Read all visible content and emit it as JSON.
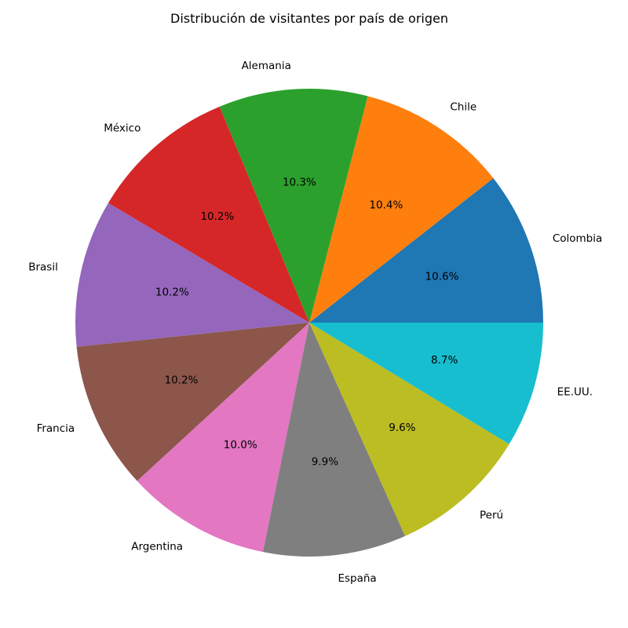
{
  "chart_data": {
    "type": "pie",
    "title": "Distribución de visitantes por país de origen",
    "start_angle_deg": 0,
    "direction": "counterclockwise",
    "categories": [
      "Colombia",
      "Chile",
      "Alemania",
      "México",
      "Brasil",
      "Francia",
      "Argentina",
      "España",
      "Perú",
      "EE.UU."
    ],
    "values": [
      10.6,
      10.4,
      10.3,
      10.2,
      10.2,
      10.2,
      10.0,
      9.9,
      9.6,
      8.7
    ],
    "value_labels": [
      "10.6%",
      "10.4%",
      "10.3%",
      "10.2%",
      "10.2%",
      "10.2%",
      "10.0%",
      "9.9%",
      "9.6%",
      "8.7%"
    ],
    "colors": [
      "#1f77b4",
      "#ff7f0e",
      "#2ca02c",
      "#d62728",
      "#9467bd",
      "#8c564b",
      "#e377c2",
      "#7f7f7f",
      "#bcbd22",
      "#17becf"
    ]
  }
}
